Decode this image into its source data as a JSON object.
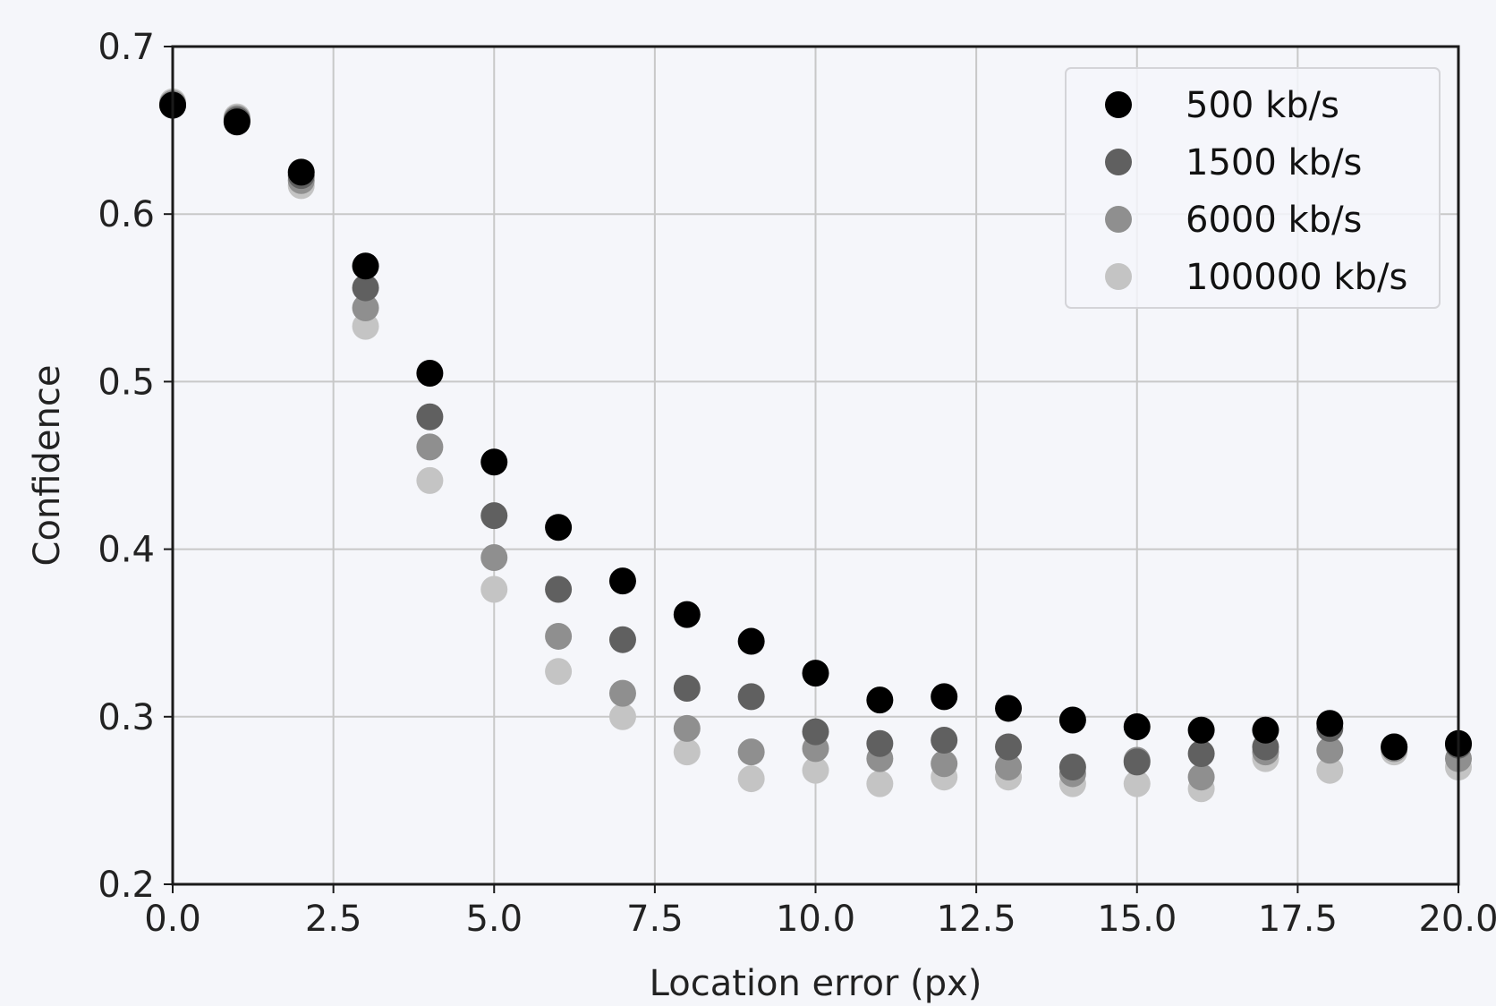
{
  "chart_data": {
    "type": "scatter",
    "title": "",
    "xlabel": "Location error (px)",
    "ylabel": "Confidence",
    "xlim": [
      0,
      20
    ],
    "ylim": [
      0.2,
      0.7
    ],
    "xticks": [
      "0.0",
      "2.5",
      "5.0",
      "7.5",
      "10.0",
      "12.5",
      "15.0",
      "17.5",
      "20.0"
    ],
    "yticks": [
      "0.2",
      "0.3",
      "0.4",
      "0.5",
      "0.6",
      "0.7"
    ],
    "grid": true,
    "legend_position": "top-right",
    "x": [
      0,
      1,
      2,
      3,
      4,
      5,
      6,
      7,
      8,
      9,
      10,
      11,
      12,
      13,
      14,
      15,
      16,
      17,
      18,
      19,
      20
    ],
    "series": [
      {
        "name": "500 kb/s",
        "color": "#000000",
        "values": [
          0.665,
          0.655,
          0.625,
          0.569,
          0.505,
          0.452,
          0.413,
          0.381,
          0.361,
          0.345,
          0.326,
          0.31,
          0.312,
          0.305,
          0.298,
          0.294,
          0.292,
          0.292,
          0.296,
          0.282,
          0.284
        ]
      },
      {
        "name": "1500 kb/s",
        "color": "#606060",
        "values": [
          0.665,
          0.656,
          0.623,
          0.556,
          0.479,
          0.42,
          0.376,
          0.346,
          0.317,
          0.312,
          0.291,
          0.284,
          0.286,
          0.282,
          0.27,
          0.273,
          0.278,
          0.282,
          0.293,
          0.282,
          0.283
        ]
      },
      {
        "name": "6000 kb/s",
        "color": "#8f8f8f",
        "values": [
          0.666,
          0.657,
          0.62,
          0.544,
          0.461,
          0.395,
          0.348,
          0.314,
          0.293,
          0.279,
          0.281,
          0.275,
          0.272,
          0.27,
          0.266,
          0.274,
          0.264,
          0.279,
          0.28,
          0.281,
          0.275
        ]
      },
      {
        "name": "100000 kb/s",
        "color": "#c4c4c4",
        "values": [
          0.667,
          0.658,
          0.617,
          0.533,
          0.441,
          0.376,
          0.327,
          0.3,
          0.279,
          0.263,
          0.268,
          0.26,
          0.264,
          0.264,
          0.26,
          0.26,
          0.257,
          0.275,
          0.268,
          0.279,
          0.27
        ]
      }
    ]
  }
}
